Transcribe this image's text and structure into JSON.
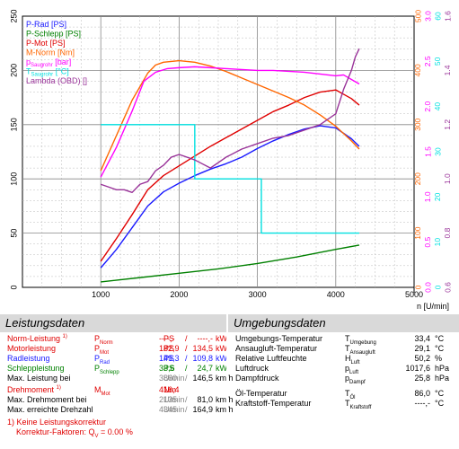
{
  "chart_data": {
    "type": "line",
    "x_axis": {
      "label": "n [U/min]",
      "range": [
        0,
        5000
      ],
      "ticks": [
        0,
        1000,
        2000,
        3000,
        4000,
        5000
      ]
    },
    "left_axis": {
      "range": [
        0,
        250
      ],
      "ticks": [
        0,
        50,
        100,
        150,
        200,
        250
      ]
    },
    "right_axes": [
      {
        "name": "M-Norm [Nm]",
        "color": "#ff6600",
        "range": [
          0,
          500
        ],
        "ticks": [
          0,
          100,
          200,
          300,
          400,
          500
        ]
      },
      {
        "name": "p Saugrohr [bar]",
        "color": "#ff00ff",
        "range": [
          0,
          3.0
        ],
        "ticks": [
          "0.0",
          "0.5",
          "1.0",
          "1.5",
          "2.0",
          "2.5",
          "3.0"
        ]
      },
      {
        "name": "T Saugrohr [°C]",
        "color": "#00e0e0",
        "range": [
          0,
          60
        ],
        "ticks": [
          0,
          10,
          20,
          30,
          40,
          50,
          60
        ]
      },
      {
        "name": "Lambda (OBD) []",
        "color": "#993399",
        "range": [
          0.6,
          1.6
        ],
        "ticks": [
          "0.6",
          "0.8",
          "1.0",
          "1.2",
          "1.4",
          "1.6"
        ]
      }
    ],
    "grid": true,
    "legend_position": "top-left",
    "legend": [
      {
        "label": "P-Rad [PS]",
        "color": "#1a1aff"
      },
      {
        "label": "P-Schlepp [PS]",
        "color": "#008000"
      },
      {
        "label": "P-Mot [PS]",
        "color": "#e00000"
      },
      {
        "label": "M-Norm [Nm]",
        "color": "#ff6600"
      },
      {
        "label": "p",
        "sub": "Saugrohr",
        "suffix": " [bar]",
        "color": "#ff00ff"
      },
      {
        "label": "T",
        "sub": "Saugrohr",
        "suffix": " [°C]",
        "color": "#00e0e0"
      },
      {
        "label": "Lambda (OBD) []",
        "color": "#993399"
      }
    ],
    "series": [
      {
        "name": "P-Rad [PS]",
        "axis": "left",
        "color": "#1a1aff",
        "x": [
          1000,
          1200,
          1400,
          1600,
          1800,
          2000,
          2200,
          2400,
          2600,
          2800,
          3000,
          3200,
          3400,
          3600,
          3800,
          4000,
          4200,
          4300
        ],
        "y": [
          18,
          35,
          55,
          75,
          88,
          96,
          103,
          109,
          114,
          120,
          128,
          135,
          141,
          146,
          149,
          147,
          137,
          130
        ]
      },
      {
        "name": "P-Schlepp [PS]",
        "axis": "left",
        "color": "#008000",
        "x": [
          1000,
          1500,
          2000,
          2500,
          3000,
          3500,
          4000,
          4300
        ],
        "y": [
          5,
          9,
          13,
          17,
          22,
          28,
          35,
          39
        ]
      },
      {
        "name": "P-Mot [PS]",
        "axis": "left",
        "color": "#e00000",
        "x": [
          1000,
          1200,
          1400,
          1600,
          1800,
          2000,
          2200,
          2400,
          2600,
          2800,
          3000,
          3200,
          3400,
          3600,
          3800,
          4000,
          4200,
          4300
        ],
        "y": [
          24,
          45,
          67,
          90,
          103,
          112,
          121,
          130,
          138,
          146,
          154,
          162,
          168,
          175,
          180,
          182,
          174,
          168
        ]
      },
      {
        "name": "M-Norm [Nm]",
        "axis": "M-Norm [Nm]",
        "color": "#ff6600",
        "x": [
          1000,
          1200,
          1400,
          1600,
          1700,
          1800,
          2000,
          2200,
          2400,
          2600,
          2800,
          3000,
          3200,
          3400,
          3600,
          3800,
          4000,
          4200,
          4300
        ],
        "y": [
          215,
          280,
          345,
          395,
          410,
          415,
          418,
          415,
          408,
          398,
          386,
          374,
          362,
          350,
          336,
          318,
          297,
          270,
          255
        ]
      },
      {
        "name": "p Saugrohr [bar]",
        "axis": "p Saugrohr [bar]",
        "color": "#ff00ff",
        "x": [
          1000,
          1200,
          1400,
          1550,
          1700,
          1850,
          2000,
          2200,
          2400,
          2600,
          2800,
          3000,
          3200,
          3400,
          3600,
          3800,
          4000,
          4100,
          4200,
          4300
        ],
        "y": [
          1.22,
          1.55,
          1.95,
          2.28,
          2.38,
          2.42,
          2.43,
          2.44,
          2.43,
          2.42,
          2.41,
          2.4,
          2.4,
          2.39,
          2.38,
          2.36,
          2.34,
          2.35,
          2.3,
          2.25
        ]
      },
      {
        "name": "T Saugrohr [°C]",
        "axis": "T Saugrohr [°C]",
        "color": "#00e0e0",
        "x": [
          1000,
          2200,
          2200,
          3050,
          3050,
          4300
        ],
        "y": [
          36,
          36,
          24,
          24,
          12,
          12
        ]
      },
      {
        "name": "Lambda (OBD) []",
        "axis": "Lambda (OBD) []",
        "color": "#993399",
        "x": [
          1000,
          1100,
          1200,
          1300,
          1400,
          1500,
          1600,
          1700,
          1800,
          1900,
          2000,
          2200,
          2400,
          2600,
          2800,
          3000,
          3200,
          3400,
          3600,
          3800,
          4000,
          4100,
          4200,
          4250,
          4300
        ],
        "y": [
          0.98,
          0.97,
          0.96,
          0.96,
          0.95,
          0.98,
          0.99,
          1.03,
          1.05,
          1.08,
          1.09,
          1.07,
          1.04,
          1.08,
          1.11,
          1.13,
          1.15,
          1.16,
          1.18,
          1.2,
          1.24,
          1.33,
          1.4,
          1.45,
          1.48
        ]
      }
    ]
  },
  "left_panel": {
    "title": "Leistungsdaten",
    "rows": [
      {
        "label": "Norm-Leistung",
        "note": "1)",
        "sym": "P",
        "sub": "Norm",
        "v1": "----,-",
        "u1": "PS",
        "sep": "/",
        "v2": "----,-",
        "u2": "kW",
        "color": "red"
      },
      {
        "label": "Motorleistung",
        "sym": "P",
        "sub": "Mot",
        "v1": "182,9",
        "u1": "PS",
        "sep": "/",
        "v2": "134,5",
        "u2": "kW",
        "color": "red"
      },
      {
        "label": "Radleistung",
        "sym": "P",
        "sub": "Rad",
        "v1": "149,3",
        "u1": "PS",
        "sep": "/",
        "v2": "109,8",
        "u2": "kW",
        "color": "blue"
      },
      {
        "label": "Schleppleistung",
        "sym": "P",
        "sub": "Schlepp",
        "v1": "33,6",
        "u1": "PS",
        "sep": "/",
        "v2": "24,7",
        "u2": "kW",
        "color": "green"
      },
      {
        "label": "Max. Leistung bei",
        "v1": "3860",
        "u1": "U/min",
        "sep": "/",
        "v2": "146,5",
        "u2": "km/h",
        "color": "black"
      },
      {
        "label": "Drehmoment",
        "note": "1)",
        "sym": "M",
        "sub": "Mot",
        "v1": "416,4",
        "u1": "Nm",
        "color": "red"
      },
      {
        "label": "Max. Drehmoment bei",
        "v1": "2135",
        "u1": "U/min",
        "sep": "/",
        "v2": "81,0",
        "u2": "km/h",
        "color": "black"
      },
      {
        "label": "Max. erreichte Drehzahl",
        "v1": "4345",
        "u1": "U/min",
        "sep": "/",
        "v2": "164,9",
        "u2": "km/h",
        "color": "black"
      }
    ],
    "footnote1": "1) Keine Leistungskorrektur",
    "footnote2_prefix": "Korrektur-Faktoren: Q",
    "footnote2_sub": "V",
    "footnote2_suffix": " =   0.00 %"
  },
  "right_panel": {
    "title": "Umgebungsdaten",
    "rows": [
      {
        "label": "Umgebungs-Temperatur",
        "sym": "T",
        "sub": "Umgebung",
        "value": "33,4",
        "unit": "°C"
      },
      {
        "label": "Ansaugluft-Temperatur",
        "sym": "T",
        "sub": "Ansaugluft",
        "value": "29,1",
        "unit": "°C"
      },
      {
        "label": "Relative Luftfeuchte",
        "sym": "H",
        "sub": "Luft",
        "value": "50,2",
        "unit": "%"
      },
      {
        "label": "Luftdruck",
        "sym": "p",
        "sub": "Luft",
        "value": "1017,6",
        "unit": "hPa"
      },
      {
        "label": "Dampfdruck",
        "sym": "p",
        "sub": "Dampf",
        "value": "25,8",
        "unit": "hPa"
      },
      {
        "label": "Öl-Temperatur",
        "sym": "T",
        "sub": "Öl",
        "value": "86,0",
        "unit": "°C"
      },
      {
        "label": "Kraftstoff-Temperatur",
        "sym": "T",
        "sub": "Kraftstoff",
        "value": "----,-",
        "unit": "°C"
      }
    ]
  }
}
